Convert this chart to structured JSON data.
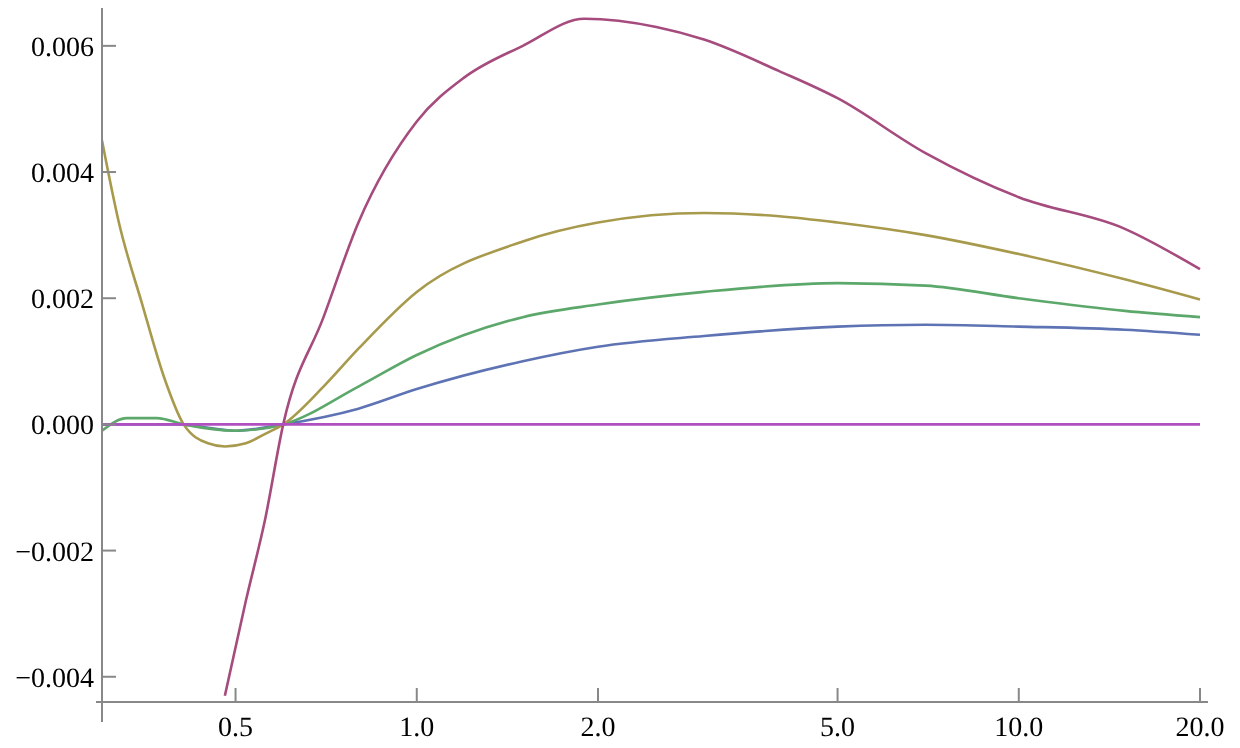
{
  "chart_data": {
    "type": "line",
    "log": "x",
    "grid": false,
    "marker": "none",
    "line_style": "solid",
    "xlim": [
      0.3,
      20
    ],
    "ylim": [
      -0.0044,
      0.0066
    ],
    "xticks": [
      {
        "value": 0.5,
        "label": "0.5"
      },
      {
        "value": 1,
        "label": "1.0"
      },
      {
        "value": 2,
        "label": "2.0"
      },
      {
        "value": 5,
        "label": "5.0"
      },
      {
        "value": 10,
        "label": "10.0"
      },
      {
        "value": 20,
        "label": "20.0"
      }
    ],
    "yticks": [
      {
        "value": -0.004,
        "label": "−0.004"
      },
      {
        "value": -0.002,
        "label": "−0.002"
      },
      {
        "value": 0,
        "label": "0.000"
      },
      {
        "value": 0.002,
        "label": "0.002"
      },
      {
        "value": 0.004,
        "label": "0.004"
      },
      {
        "value": 0.006,
        "label": "0.006"
      }
    ],
    "series": [
      {
        "color": "#5e73b3",
        "x": [
          0.3,
          0.4,
          0.5,
          0.6,
          0.8,
          1,
          1.5,
          2,
          3,
          5,
          7,
          10,
          15,
          20
        ],
        "values": [
          0,
          0,
          -0.0001,
          0,
          0.00025,
          0.00056,
          0.001,
          0.00123,
          0.0014,
          0.00155,
          0.00158,
          0.00155,
          0.0015,
          0.00142
        ]
      },
      {
        "color": "#5ca86b",
        "x": [
          0.3,
          0.33,
          0.37,
          0.41,
          0.5,
          0.6,
          0.8,
          1,
          1.5,
          2,
          3,
          5,
          7,
          10,
          15,
          20
        ],
        "values": [
          -0.0001,
          0.0001,
          0.0001,
          0,
          -0.0001,
          0,
          0.0006,
          0.0011,
          0.0017,
          0.0019,
          0.0021,
          0.00224,
          0.0022,
          0.002,
          0.0018,
          0.0017
        ]
      },
      {
        "color": "#a89a4c",
        "x": [
          0.3,
          0.32,
          0.35,
          0.38,
          0.41,
          0.45,
          0.48,
          0.52,
          0.56,
          0.6,
          0.7,
          0.8,
          1,
          1.5,
          2,
          3,
          4,
          5,
          7,
          10,
          15,
          20
        ],
        "values": [
          0.0045,
          0.0032,
          0.0019,
          0.00076,
          0,
          -0.0003,
          -0.00035,
          -0.0003,
          -0.00015,
          0,
          0.0006,
          0.0012,
          0.0021,
          0.0029,
          0.0032,
          0.00335,
          0.0033,
          0.0032,
          0.003,
          0.0027,
          0.0023,
          0.00198
        ]
      },
      {
        "color": "#a64b7e",
        "x": [
          0.48,
          0.52,
          0.56,
          0.6,
          0.7,
          0.8,
          1,
          1.2,
          1.5,
          1.9,
          2.5,
          3,
          4,
          5,
          7,
          10,
          15,
          20
        ],
        "values": [
          -0.0043,
          -0.0028,
          -0.0015,
          0,
          0.0017,
          0.0032,
          0.0048,
          0.0055,
          0.006,
          0.00643,
          0.0063,
          0.0061,
          0.0056,
          0.00517,
          0.0043,
          0.0036,
          0.0031,
          0.00246
        ]
      },
      {
        "color": "#b04fbf",
        "x": [
          0.3,
          20
        ],
        "values": [
          0,
          0
        ]
      }
    ]
  }
}
